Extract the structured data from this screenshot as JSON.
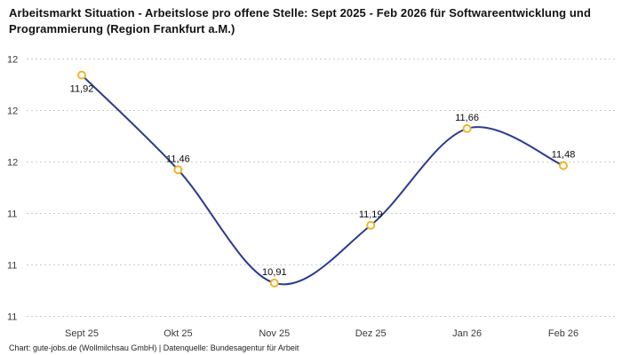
{
  "title": "Arbeitsmarkt Situation - Arbeitslose pro offene Stelle: Sept 2025 - Feb 2026 für Softwareentwicklung und Programmierung (Region Frankfurt a.M.)",
  "footer": "Chart: gute-jobs.de (Wollmilchsau GmbH) | Datenquelle: Bundesagentur für Arbeit",
  "chart_data": {
    "type": "line",
    "title": "Arbeitsmarkt Situation - Arbeitslose pro offene Stelle: Sept 2025 - Feb 2026 für Softwareentwicklung und Programmierung (Region Frankfurt a.M.)",
    "categories": [
      "Sept 25",
      "Okt 25",
      "Nov 25",
      "Dez 25",
      "Jan 26",
      "Feb 26"
    ],
    "values": [
      11.92,
      11.46,
      10.91,
      11.19,
      11.66,
      11.48
    ],
    "value_labels": [
      "11,92",
      "11,46",
      "10,91",
      "11,19",
      "11,66",
      "11,48"
    ],
    "label_placements": [
      "below",
      "above",
      "above",
      "above",
      "above",
      "above"
    ],
    "xlabel": "",
    "ylabel": "",
    "ylim": [
      10.75,
      12.0
    ],
    "ytick_step": 0.25,
    "ytick_labels_top_to_bottom": [
      "12",
      "12",
      "12",
      "11",
      "11",
      "11"
    ],
    "grid": "dashed-horizontal",
    "legend": "none",
    "smooth": true,
    "colors": {
      "line": "#2a3b8f",
      "marker_stroke": "#f0b429",
      "marker_fill": "#ffffff",
      "gridline": "#cccccc",
      "axis_text": "#3a3a3a",
      "value_text": "#0a0a0a"
    }
  }
}
